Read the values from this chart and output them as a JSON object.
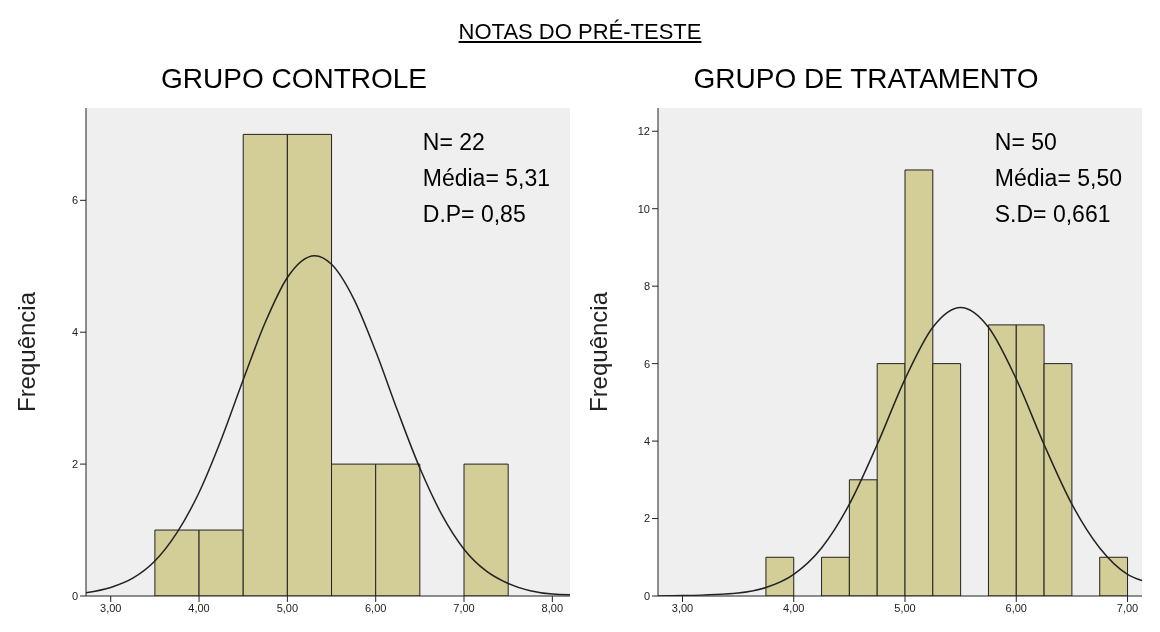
{
  "chart_data": [
    {
      "type": "histogram",
      "subtitle": "NOTAS DO PRÉ-TESTE",
      "title": "GRUPO CONTROLE",
      "ylabel": "Frequência",
      "annotations": [
        "N= 22",
        "Média= 5,31",
        "D.P= 0,85"
      ],
      "xlim": [
        2.72,
        8.2
      ],
      "xticks": [
        {
          "value": 3,
          "label": "3,00"
        },
        {
          "value": 4,
          "label": "4,00"
        },
        {
          "value": 5,
          "label": "5,00"
        },
        {
          "value": 6,
          "label": "6,00"
        },
        {
          "value": 7,
          "label": "7,00"
        },
        {
          "value": 8,
          "label": "8,00"
        }
      ],
      "ylim": [
        0,
        7.4
      ],
      "yticks": [
        0,
        2,
        4,
        6
      ],
      "series": [
        {
          "color": "#d3ce97",
          "bins": [
            3.5,
            4,
            4.5,
            5,
            5.5,
            6,
            6.5,
            7,
            7.5
          ],
          "values": [
            1,
            1,
            7,
            7,
            2,
            2,
            0,
            2
          ]
        },
        {
          "type": "line",
          "color": "#222222",
          "x": [
            2.72,
            3,
            3.25,
            3.5,
            3.75,
            4,
            4.25,
            4.5,
            4.75,
            5,
            5.31,
            5.5,
            5.75,
            6,
            6.25,
            6.5,
            6.75,
            7,
            7.25,
            7.5,
            7.75,
            8,
            8.2
          ],
          "values": [
            0.05,
            0.13,
            0.27,
            0.53,
            0.96,
            1.57,
            2.37,
            3.28,
            4.15,
            4.83,
            5.16,
            5.03,
            4.51,
            3.71,
            2.8,
            1.94,
            1.23,
            0.71,
            0.38,
            0.19,
            0.08,
            0.03,
            0.02
          ]
        }
      ]
    },
    {
      "type": "histogram",
      "title": "GRUPO DE TRATAMENTO",
      "ylabel": "Frequência",
      "annotations": [
        "N= 50",
        "Média= 5,50",
        "S.D= 0,661"
      ],
      "xlim": [
        2.78,
        7.13
      ],
      "xticks": [
        {
          "value": 3,
          "label": "3,00"
        },
        {
          "value": 4,
          "label": "4,00"
        },
        {
          "value": 5,
          "label": "5,00"
        },
        {
          "value": 6,
          "label": "6,00"
        },
        {
          "value": 7,
          "label": "7,00"
        }
      ],
      "ylim": [
        0,
        12.6
      ],
      "yticks": [
        0,
        2,
        4,
        6,
        8,
        10,
        12
      ],
      "series": [
        {
          "color": "#d3ce97",
          "bins": [
            3.75,
            4,
            4.25,
            4.5,
            4.75,
            5,
            5.25,
            5.5,
            5.75,
            6,
            6.25,
            6.5,
            6.75,
            7
          ],
          "values": [
            1,
            0,
            1,
            3,
            6,
            11,
            6,
            0,
            7,
            7,
            6,
            0,
            1
          ]
        },
        {
          "type": "line",
          "color": "#222222",
          "x": [
            2.78,
            3,
            3.5,
            3.75,
            4,
            4.25,
            4.5,
            4.75,
            5,
            5.25,
            5.5,
            5.75,
            6,
            6.25,
            6.5,
            6.75,
            7,
            7.13
          ],
          "values": [
            0,
            0.01,
            0.08,
            0.22,
            0.56,
            1.24,
            2.37,
            3.91,
            5.6,
            6.94,
            7.45,
            6.94,
            5.6,
            3.91,
            2.37,
            1.24,
            0.56,
            0.4
          ]
        }
      ]
    }
  ]
}
